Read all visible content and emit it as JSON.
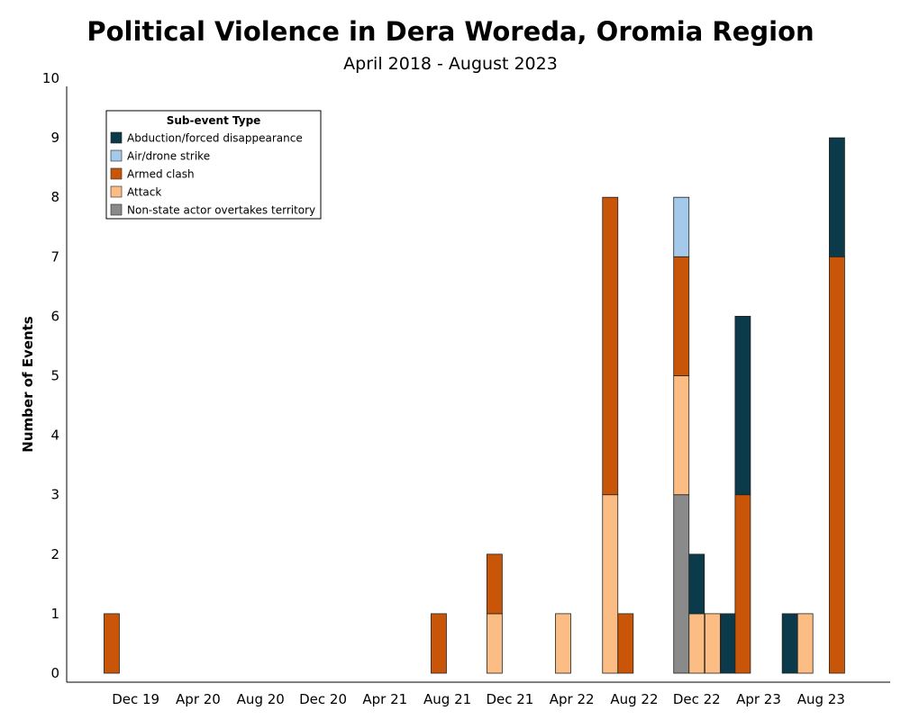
{
  "chart_data": {
    "type": "bar",
    "stacked": true,
    "title": "Political Violence in Dera Woreda, Oromia Region",
    "subtitle": "April 2018 - August 2023",
    "ylabel": "Number of Events",
    "xlabel": "",
    "ylim": [
      0,
      10
    ],
    "yticks": [
      "0",
      "1",
      "2",
      "3",
      "4",
      "5",
      "6",
      "7",
      "8",
      "9",
      "10"
    ],
    "xlim": [
      "2019-10-01",
      "2023-10-31"
    ],
    "xticks": [
      {
        "label": "Dec 19",
        "date": "2019-12-01"
      },
      {
        "label": "Apr 20",
        "date": "2020-04-01"
      },
      {
        "label": "Aug 20",
        "date": "2020-08-01"
      },
      {
        "label": "Dec 20",
        "date": "2020-12-01"
      },
      {
        "label": "Apr 21",
        "date": "2021-04-01"
      },
      {
        "label": "Aug 21",
        "date": "2021-08-01"
      },
      {
        "label": "Dec 21",
        "date": "2021-12-01"
      },
      {
        "label": "Apr 22",
        "date": "2022-04-01"
      },
      {
        "label": "Aug 22",
        "date": "2022-08-01"
      },
      {
        "label": "Dec 22",
        "date": "2022-12-01"
      },
      {
        "label": "Apr 23",
        "date": "2023-04-01"
      },
      {
        "label": "Aug 23",
        "date": "2023-08-01"
      }
    ],
    "legend": {
      "title": "Sub-event Type",
      "position": "top-left",
      "entries": [
        {
          "name": "Abduction/forced disappearance",
          "color": "#0b3a4a"
        },
        {
          "name": "Air/drone strike",
          "color": "#a5c9ea"
        },
        {
          "name": "Armed clash",
          "color": "#c85508"
        },
        {
          "name": "Attack",
          "color": "#fcbd84"
        },
        {
          "name": "Non-state actor overtakes territory",
          "color": "#8a8a8a"
        }
      ]
    },
    "stack_order": [
      "Non-state actor overtakes territory",
      "Attack",
      "Armed clash",
      "Air/drone strike",
      "Abduction/forced disappearance"
    ],
    "bars": [
      {
        "date": "2019-10-15",
        "values": {
          "Armed clash": 1
        }
      },
      {
        "date": "2021-07-15",
        "values": {
          "Armed clash": 1
        }
      },
      {
        "date": "2021-11-01",
        "values": {
          "Attack": 1,
          "Armed clash": 1
        }
      },
      {
        "date": "2022-03-15",
        "values": {
          "Attack": 1
        }
      },
      {
        "date": "2022-06-15",
        "values": {
          "Attack": 3,
          "Armed clash": 5
        }
      },
      {
        "date": "2022-07-15",
        "values": {
          "Armed clash": 1
        }
      },
      {
        "date": "2022-11-01",
        "values": {
          "Non-state actor overtakes territory": 3,
          "Attack": 2,
          "Armed clash": 2,
          "Air/drone strike": 1
        }
      },
      {
        "date": "2022-12-01",
        "values": {
          "Attack": 1,
          "Abduction/forced disappearance": 1
        }
      },
      {
        "date": "2023-01-01",
        "values": {
          "Attack": 1
        }
      },
      {
        "date": "2023-02-01",
        "values": {
          "Abduction/forced disappearance": 1
        }
      },
      {
        "date": "2023-03-01",
        "values": {
          "Armed clash": 3,
          "Abduction/forced disappearance": 3
        }
      },
      {
        "date": "2023-06-01",
        "values": {
          "Abduction/forced disappearance": 1
        }
      },
      {
        "date": "2023-07-01",
        "values": {
          "Attack": 1
        }
      },
      {
        "date": "2023-09-01",
        "values": {
          "Armed clash": 7,
          "Abduction/forced disappearance": 2
        }
      }
    ]
  }
}
